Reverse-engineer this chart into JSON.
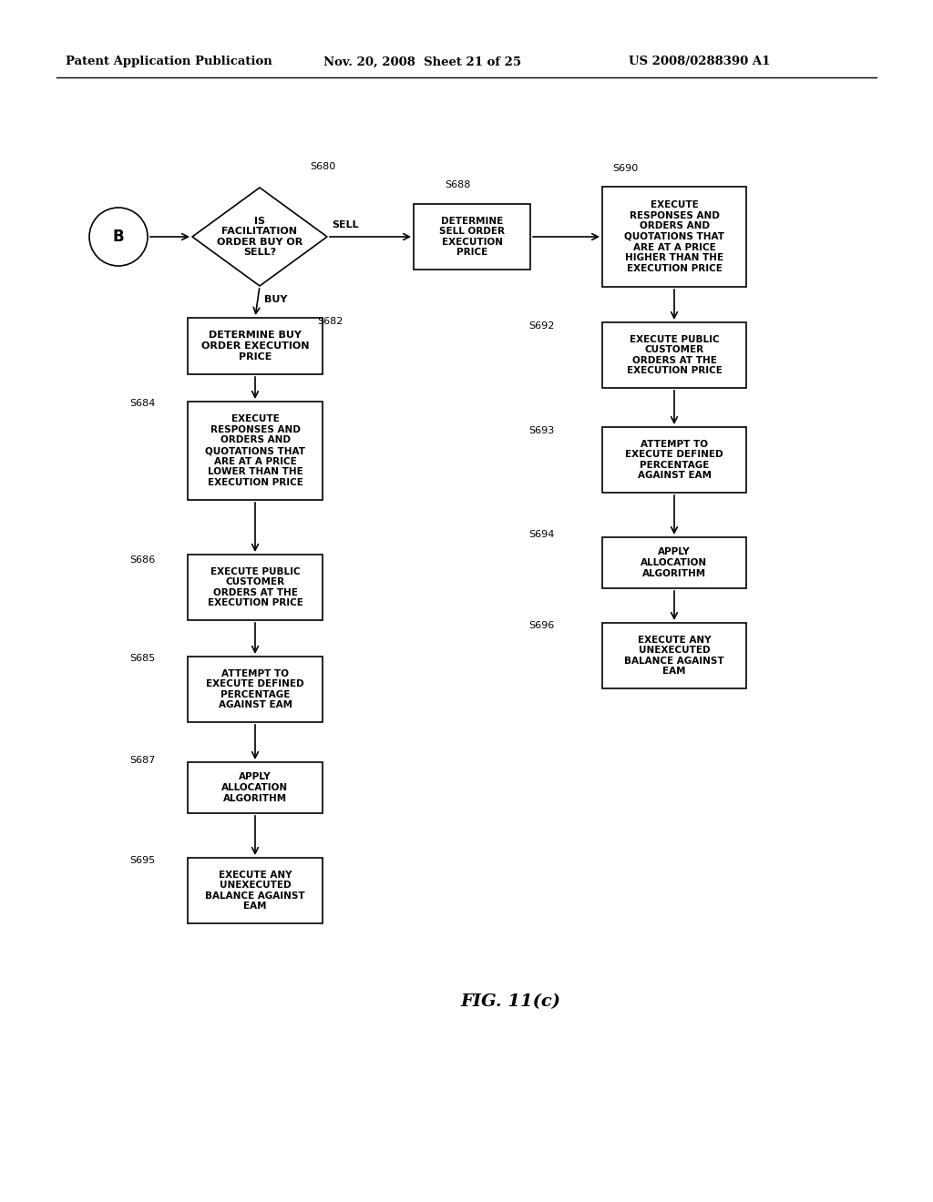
{
  "header_left": "Patent Application Publication",
  "header_mid": "Nov. 20, 2008  Sheet 21 of 25",
  "header_right": "US 2008/0288390 A1",
  "figure_label": "FIG. 11(c)",
  "bg_color": "#ffffff",
  "fig_w": 10.24,
  "fig_h": 13.2,
  "dpi": 100
}
